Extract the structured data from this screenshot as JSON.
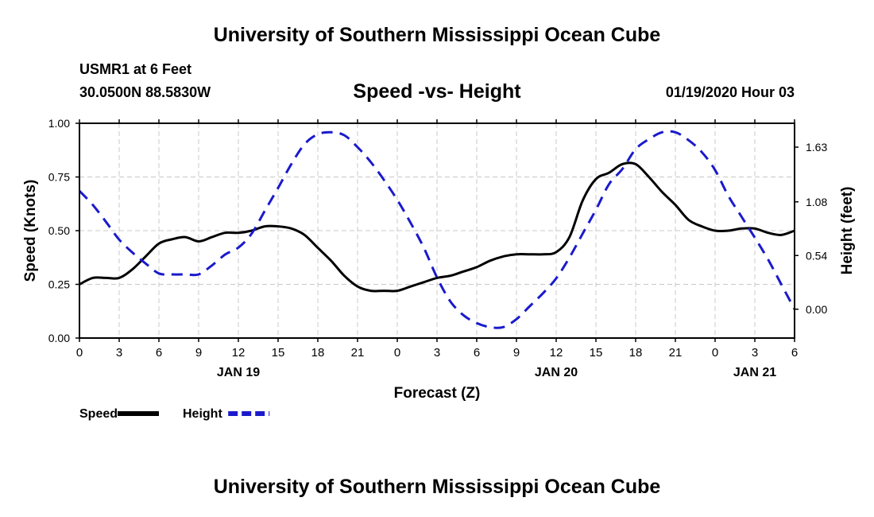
{
  "header": {
    "title": "University of Southern Mississippi Ocean Cube",
    "station": "USMR1 at 6 Feet",
    "coords": "30.0500N 88.5830W",
    "subtitle": "Speed -vs- Height",
    "datetime": "01/19/2020 Hour 03"
  },
  "footer": {
    "title": "University of Southern Mississippi Ocean Cube"
  },
  "chart_data": {
    "type": "line",
    "title": "Speed -vs- Height",
    "xlabel": "Forecast (Z)",
    "ylabel": "Speed (Knots)",
    "y2label": "Height (feet)",
    "grid": true,
    "legend_position": "bottom-left",
    "xlim": [
      0,
      54
    ],
    "ylim": [
      0,
      1.0
    ],
    "y2lim": [
      -0.29,
      1.87
    ],
    "x_ticks": [
      0,
      3,
      6,
      9,
      12,
      15,
      18,
      21,
      24,
      27,
      30,
      33,
      36,
      39,
      42,
      45,
      48,
      51,
      54
    ],
    "x_tick_labels": [
      "0",
      "3",
      "6",
      "9",
      "12",
      "15",
      "18",
      "21",
      "0",
      "3",
      "6",
      "9",
      "12",
      "15",
      "18",
      "21",
      "0",
      "3",
      "6"
    ],
    "date_labels": [
      {
        "x": 12,
        "label": "JAN 19"
      },
      {
        "x": 36,
        "label": "JAN 20"
      },
      {
        "x": 51,
        "label": "JAN 21"
      }
    ],
    "y_ticks": [
      0.0,
      0.25,
      0.5,
      0.75,
      1.0
    ],
    "y_tick_labels": [
      "0.00",
      "0.25",
      "0.50",
      "0.75",
      "1.00"
    ],
    "y2_ticks": [
      0.0,
      0.54,
      1.08,
      1.63
    ],
    "y2_tick_labels": [
      "0.00",
      "0.54",
      "1.08",
      "1.63"
    ],
    "series": [
      {
        "name": "Speed",
        "axis": "left",
        "color": "#000000",
        "dash": "solid",
        "x": [
          0,
          1,
          2,
          3,
          4,
          5,
          6,
          7,
          8,
          9,
          10,
          11,
          12,
          13,
          14,
          15,
          16,
          17,
          18,
          19,
          20,
          21,
          22,
          23,
          24,
          25,
          26,
          27,
          28,
          29,
          30,
          31,
          32,
          33,
          34,
          35,
          36,
          37,
          38,
          39,
          40,
          41,
          42,
          43,
          44,
          45,
          46,
          47,
          48,
          49,
          50,
          51,
          52,
          53,
          54
        ],
        "values": [
          0.25,
          0.28,
          0.28,
          0.28,
          0.32,
          0.38,
          0.44,
          0.46,
          0.47,
          0.45,
          0.47,
          0.49,
          0.49,
          0.5,
          0.52,
          0.52,
          0.51,
          0.48,
          0.42,
          0.36,
          0.29,
          0.24,
          0.22,
          0.22,
          0.22,
          0.24,
          0.26,
          0.28,
          0.29,
          0.31,
          0.33,
          0.36,
          0.38,
          0.39,
          0.39,
          0.39,
          0.4,
          0.47,
          0.64,
          0.74,
          0.77,
          0.81,
          0.81,
          0.75,
          0.68,
          0.62,
          0.55,
          0.52,
          0.5,
          0.5,
          0.51,
          0.51,
          0.49,
          0.48,
          0.5
        ]
      },
      {
        "name": "Height",
        "axis": "right",
        "color": "#1a1acc",
        "dash": "dashed",
        "x": [
          0,
          1,
          2,
          3,
          4,
          5,
          6,
          7,
          8,
          9,
          10,
          11,
          12,
          13,
          14,
          15,
          16,
          17,
          18,
          19,
          20,
          21,
          22,
          23,
          24,
          25,
          26,
          27,
          28,
          29,
          30,
          31,
          32,
          33,
          34,
          35,
          36,
          37,
          38,
          39,
          40,
          41,
          42,
          43,
          44,
          45,
          46,
          47,
          48,
          49,
          50,
          51,
          52,
          53,
          54
        ],
        "values": [
          1.19,
          1.05,
          0.88,
          0.7,
          0.57,
          0.46,
          0.36,
          0.35,
          0.35,
          0.35,
          0.44,
          0.55,
          0.62,
          0.76,
          0.99,
          1.22,
          1.46,
          1.66,
          1.76,
          1.78,
          1.75,
          1.63,
          1.48,
          1.3,
          1.1,
          0.87,
          0.62,
          0.32,
          0.08,
          -0.06,
          -0.14,
          -0.18,
          -0.18,
          -0.1,
          0.03,
          0.16,
          0.31,
          0.52,
          0.76,
          1.0,
          1.26,
          1.41,
          1.61,
          1.71,
          1.78,
          1.78,
          1.7,
          1.58,
          1.4,
          1.14,
          0.93,
          0.72,
          0.5,
          0.25,
          0.0
        ]
      }
    ]
  }
}
